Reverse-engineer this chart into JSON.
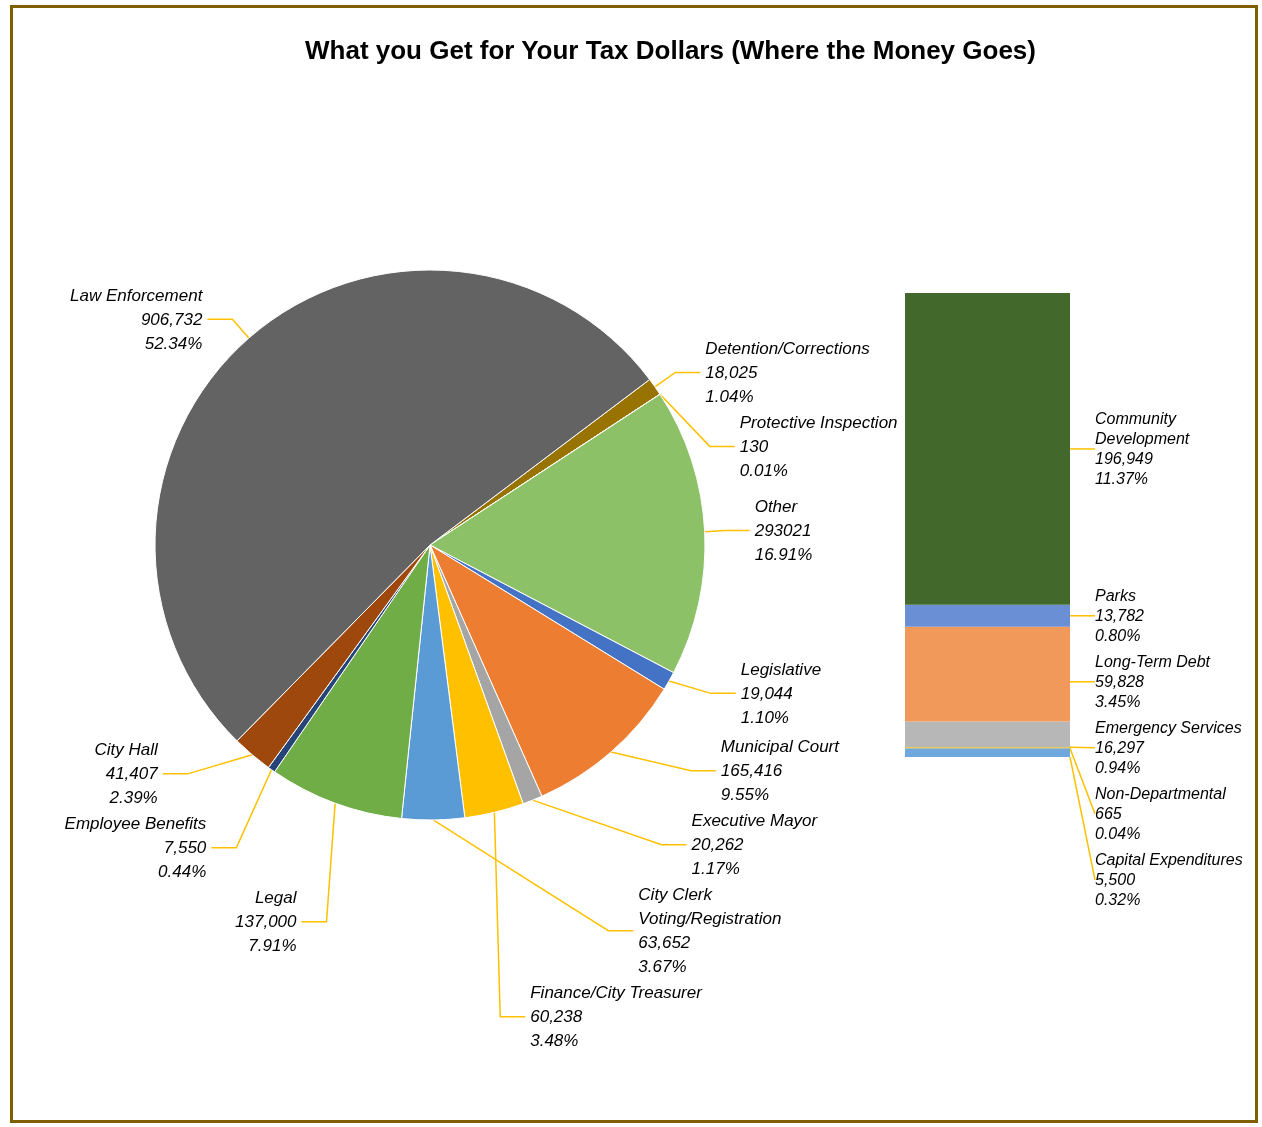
{
  "chart_data": [
    {
      "type": "pie",
      "title": "What you Get for Your Tax Dollars (Where the Money Goes)",
      "categories": [
        "Detention/Corrections",
        "Protective Inspection",
        "Other",
        "Legislative",
        "Municipal Court",
        "Executive Mayor",
        "Finance/City Treasurer",
        "City Clerk\nVoting/Registration",
        "Legal",
        "Employee Benefits",
        "City Hall",
        "Law Enforcement"
      ],
      "values": [
        18025,
        130,
        293021,
        19044,
        165416,
        20262,
        60238,
        63652,
        137000,
        7550,
        41407,
        906732
      ],
      "colors": [
        "#997300",
        "#f4b183",
        "#8cc168",
        "#4472c4",
        "#ed7d31",
        "#a5a5a5",
        "#ffc000",
        "#5b9bd5",
        "#70ad47",
        "#264478",
        "#9e480e",
        "#636363"
      ],
      "value_labels": [
        "18,025\n1.04%",
        "130\n0.01%",
        "293021\n16.91%",
        "19,044\n1.10%",
        "165,416\n9.55%",
        "20,262\n1.17%",
        "60,238\n3.48%",
        "63,652\n3.67%",
        "137,000\n7.91%",
        "7,550\n0.44%",
        "41,407\n2.39%",
        "906,732\n52.34%"
      ],
      "legend": false
    },
    {
      "type": "bar",
      "stacked": true,
      "categories": [
        null
      ],
      "legend": false,
      "series": [
        {
          "name": "Capital Expenditures",
          "color": "#6fa8dc",
          "values": [
            5500
          ],
          "value_labels": [
            "5,500\n0.32%"
          ]
        },
        {
          "name": "Non-Departmental",
          "color": "#ffc000",
          "values": [
            665
          ],
          "value_labels": [
            "665\n0.04%"
          ]
        },
        {
          "name": "Emergency Services",
          "color": "#b7b7b7",
          "values": [
            16297
          ],
          "value_labels": [
            "16,297\n0.94%"
          ]
        },
        {
          "name": "Long-Term Debt",
          "color": "#f0995a",
          "values": [
            59828
          ],
          "value_labels": [
            "59,828\n3.45%"
          ]
        },
        {
          "name": "Parks",
          "color": "#6b8fd4",
          "values": [
            13782
          ],
          "value_labels": [
            "13,782\n0.80%"
          ]
        },
        {
          "name": "Community Development",
          "color": "#43682b",
          "values": [
            196949
          ],
          "value_labels": [
            "196,949\n11.37%"
          ]
        }
      ]
    }
  ]
}
